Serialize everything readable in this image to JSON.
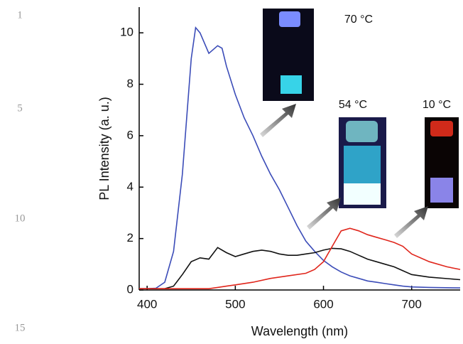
{
  "chart_data": {
    "type": "line",
    "xlabel": "Wavelength (nm)",
    "ylabel": "PL Intensity (a. u.)",
    "xlim": [
      391,
      755
    ],
    "ylim": [
      0,
      11
    ],
    "xticks": [
      400,
      500,
      600,
      700
    ],
    "yticks": [
      0,
      2,
      4,
      6,
      8,
      10
    ],
    "annotations": [
      "70 °C",
      "54 °C",
      "10 °C"
    ],
    "series": [
      {
        "name": "70 °C",
        "color": "#3b4cb8",
        "x": [
          391,
          400,
          410,
          420,
          430,
          440,
          450,
          455,
          460,
          470,
          480,
          485,
          490,
          500,
          510,
          520,
          530,
          540,
          550,
          560,
          570,
          580,
          590,
          600,
          610,
          620,
          630,
          640,
          650,
          660,
          670,
          680,
          690,
          700,
          720,
          755
        ],
        "values": [
          0.05,
          0.05,
          0.07,
          0.3,
          1.5,
          4.5,
          9.0,
          10.2,
          10.0,
          9.2,
          9.5,
          9.4,
          8.7,
          7.6,
          6.7,
          6.0,
          5.2,
          4.5,
          3.9,
          3.2,
          2.5,
          1.9,
          1.5,
          1.15,
          0.9,
          0.7,
          0.55,
          0.45,
          0.35,
          0.3,
          0.25,
          0.2,
          0.15,
          0.12,
          0.1,
          0.08
        ]
      },
      {
        "name": "54 °C",
        "color": "#111111",
        "x": [
          391,
          420,
          430,
          440,
          450,
          460,
          470,
          480,
          490,
          500,
          510,
          520,
          530,
          540,
          550,
          560,
          570,
          580,
          590,
          600,
          610,
          620,
          630,
          640,
          650,
          660,
          670,
          680,
          690,
          700,
          720,
          755
        ],
        "values": [
          0.05,
          0.05,
          0.15,
          0.6,
          1.1,
          1.25,
          1.2,
          1.65,
          1.45,
          1.3,
          1.4,
          1.5,
          1.55,
          1.5,
          1.4,
          1.35,
          1.35,
          1.4,
          1.45,
          1.55,
          1.62,
          1.6,
          1.5,
          1.35,
          1.2,
          1.1,
          1.0,
          0.9,
          0.75,
          0.6,
          0.5,
          0.4
        ]
      },
      {
        "name": "10 °C",
        "color": "#e0261c",
        "x": [
          391,
          470,
          480,
          490,
          500,
          520,
          540,
          560,
          580,
          590,
          600,
          610,
          620,
          630,
          640,
          650,
          660,
          670,
          680,
          690,
          700,
          720,
          740,
          755
        ],
        "values": [
          0.05,
          0.05,
          0.1,
          0.15,
          0.2,
          0.3,
          0.45,
          0.55,
          0.65,
          0.8,
          1.1,
          1.7,
          2.3,
          2.4,
          2.3,
          2.15,
          2.05,
          1.95,
          1.85,
          1.7,
          1.4,
          1.1,
          0.9,
          0.8
        ]
      }
    ]
  },
  "line_numbers": [
    "1",
    "5",
    "10",
    "15"
  ]
}
